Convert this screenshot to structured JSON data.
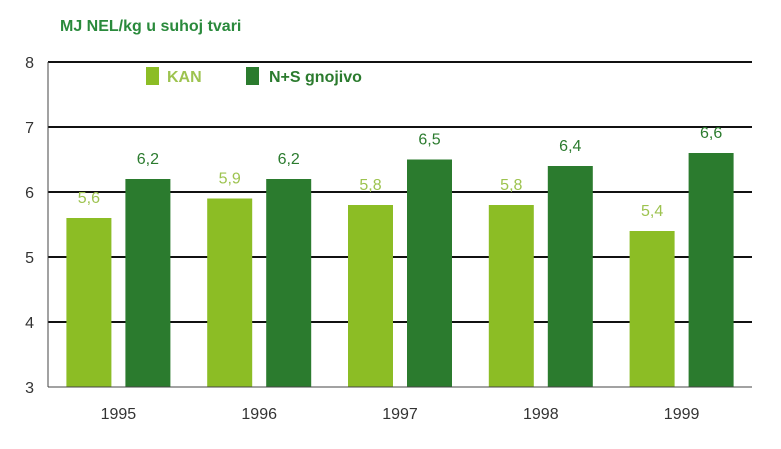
{
  "chart_data": {
    "type": "bar",
    "ylabel": "MJ NEL/kg u suhoj tvari",
    "categories": [
      "1995",
      "1996",
      "1997",
      "1998",
      "1999"
    ],
    "series": [
      {
        "name": "KAN",
        "values": [
          5.6,
          5.9,
          5.8,
          5.8,
          5.4
        ],
        "labels": [
          "5,6",
          "5,9",
          "5,8",
          "5,8",
          "5,4"
        ],
        "color": "#8cbd25"
      },
      {
        "name": "N+S gnojivo",
        "values": [
          6.2,
          6.2,
          6.5,
          6.4,
          6.6
        ],
        "labels": [
          "6,2",
          "6,2",
          "6,5",
          "6,4",
          "6,6"
        ],
        "color": "#2b7b2e"
      }
    ],
    "ylim": [
      3,
      8
    ],
    "yticks": [
      "3",
      "4",
      "5",
      "6",
      "7",
      "8"
    ],
    "grid": true,
    "legend": "top-left",
    "colors": {
      "title": "#2a8a3c",
      "grid": "#111111",
      "kan_label": "#9dc34f",
      "ns_label": "#2b7b2e"
    }
  }
}
